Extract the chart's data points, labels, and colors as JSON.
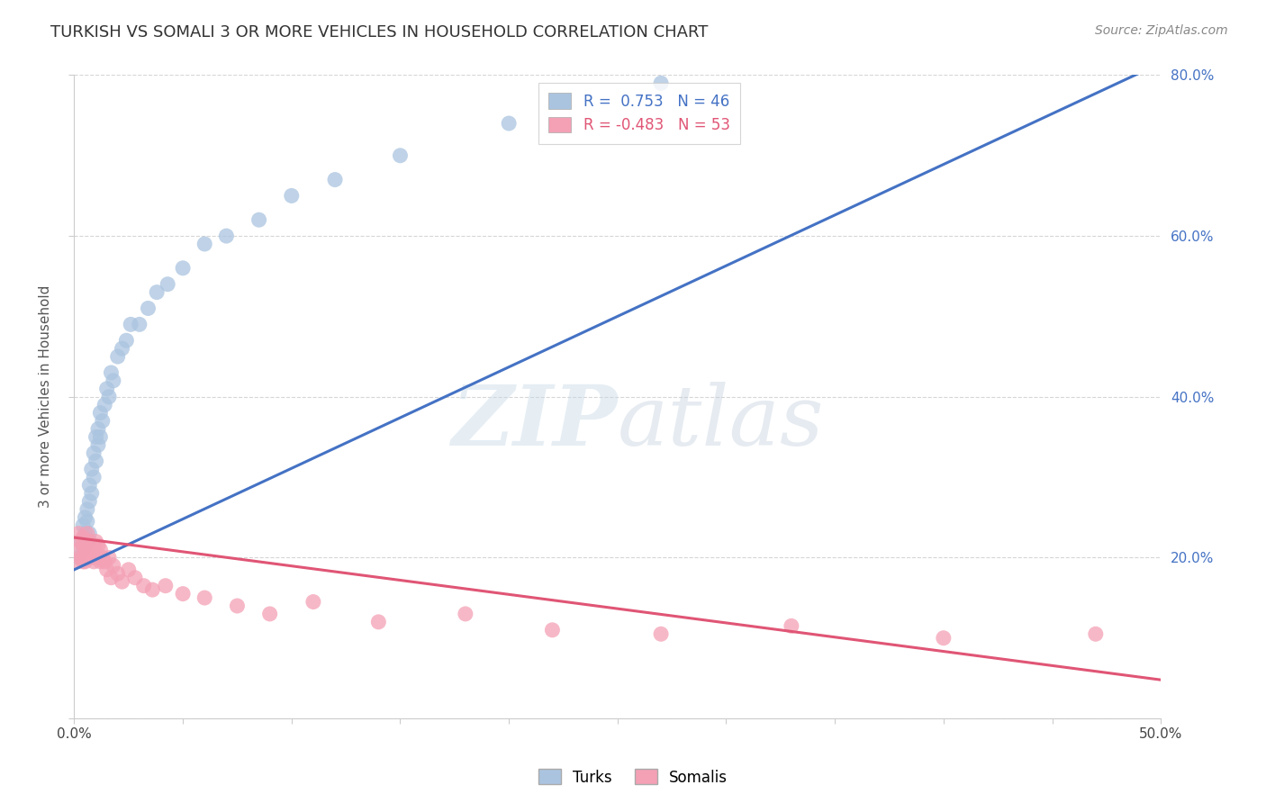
{
  "title": "TURKISH VS SOMALI 3 OR MORE VEHICLES IN HOUSEHOLD CORRELATION CHART",
  "source_text": "Source: ZipAtlas.com",
  "ylabel": "3 or more Vehicles in Household",
  "xlim": [
    0.0,
    0.5
  ],
  "ylim": [
    0.0,
    0.8
  ],
  "xticks": [
    0.0,
    0.05,
    0.1,
    0.15,
    0.2,
    0.25,
    0.3,
    0.35,
    0.4,
    0.45,
    0.5
  ],
  "xticklabels": [
    "0.0%",
    "",
    "",
    "",
    "",
    "",
    "",
    "",
    "",
    "",
    "50.0%"
  ],
  "yticks": [
    0.0,
    0.2,
    0.4,
    0.6,
    0.8
  ],
  "yticklabels_right": [
    "",
    "20.0%",
    "40.0%",
    "60.0%",
    "80.0%"
  ],
  "turks_color": "#aac4e0",
  "somalis_color": "#f4a0b5",
  "turks_line_color": "#4472c4",
  "somalis_line_color": "#e05575",
  "turks_R": 0.753,
  "turks_N": 46,
  "somalis_R": -0.483,
  "somalis_N": 53,
  "watermark_zip": "ZIP",
  "watermark_atlas": "atlas",
  "background_color": "#ffffff",
  "grid_color": "#cccccc",
  "turks_x": [
    0.002,
    0.003,
    0.004,
    0.004,
    0.005,
    0.005,
    0.005,
    0.006,
    0.006,
    0.006,
    0.007,
    0.007,
    0.007,
    0.008,
    0.008,
    0.009,
    0.009,
    0.01,
    0.01,
    0.011,
    0.011,
    0.012,
    0.012,
    0.013,
    0.014,
    0.015,
    0.016,
    0.017,
    0.018,
    0.02,
    0.022,
    0.024,
    0.026,
    0.03,
    0.034,
    0.038,
    0.043,
    0.05,
    0.06,
    0.07,
    0.085,
    0.1,
    0.12,
    0.15,
    0.2,
    0.27
  ],
  "turks_y": [
    0.2,
    0.22,
    0.21,
    0.24,
    0.215,
    0.23,
    0.25,
    0.22,
    0.245,
    0.26,
    0.23,
    0.27,
    0.29,
    0.28,
    0.31,
    0.3,
    0.33,
    0.32,
    0.35,
    0.34,
    0.36,
    0.35,
    0.38,
    0.37,
    0.39,
    0.41,
    0.4,
    0.43,
    0.42,
    0.45,
    0.46,
    0.47,
    0.49,
    0.49,
    0.51,
    0.53,
    0.54,
    0.56,
    0.59,
    0.6,
    0.62,
    0.65,
    0.67,
    0.7,
    0.74,
    0.79
  ],
  "somalis_x": [
    0.001,
    0.002,
    0.002,
    0.003,
    0.003,
    0.004,
    0.004,
    0.004,
    0.005,
    0.005,
    0.005,
    0.006,
    0.006,
    0.006,
    0.007,
    0.007,
    0.007,
    0.008,
    0.008,
    0.009,
    0.009,
    0.009,
    0.01,
    0.01,
    0.011,
    0.011,
    0.012,
    0.012,
    0.013,
    0.014,
    0.015,
    0.016,
    0.017,
    0.018,
    0.02,
    0.022,
    0.025,
    0.028,
    0.032,
    0.036,
    0.042,
    0.05,
    0.06,
    0.075,
    0.09,
    0.11,
    0.14,
    0.18,
    0.22,
    0.27,
    0.33,
    0.4,
    0.47
  ],
  "somalis_y": [
    0.195,
    0.21,
    0.23,
    0.2,
    0.22,
    0.215,
    0.195,
    0.225,
    0.205,
    0.215,
    0.195,
    0.22,
    0.205,
    0.23,
    0.21,
    0.2,
    0.22,
    0.215,
    0.205,
    0.2,
    0.215,
    0.195,
    0.205,
    0.22,
    0.2,
    0.215,
    0.195,
    0.21,
    0.2,
    0.195,
    0.185,
    0.2,
    0.175,
    0.19,
    0.18,
    0.17,
    0.185,
    0.175,
    0.165,
    0.16,
    0.165,
    0.155,
    0.15,
    0.14,
    0.13,
    0.145,
    0.12,
    0.13,
    0.11,
    0.105,
    0.115,
    0.1,
    0.105
  ]
}
